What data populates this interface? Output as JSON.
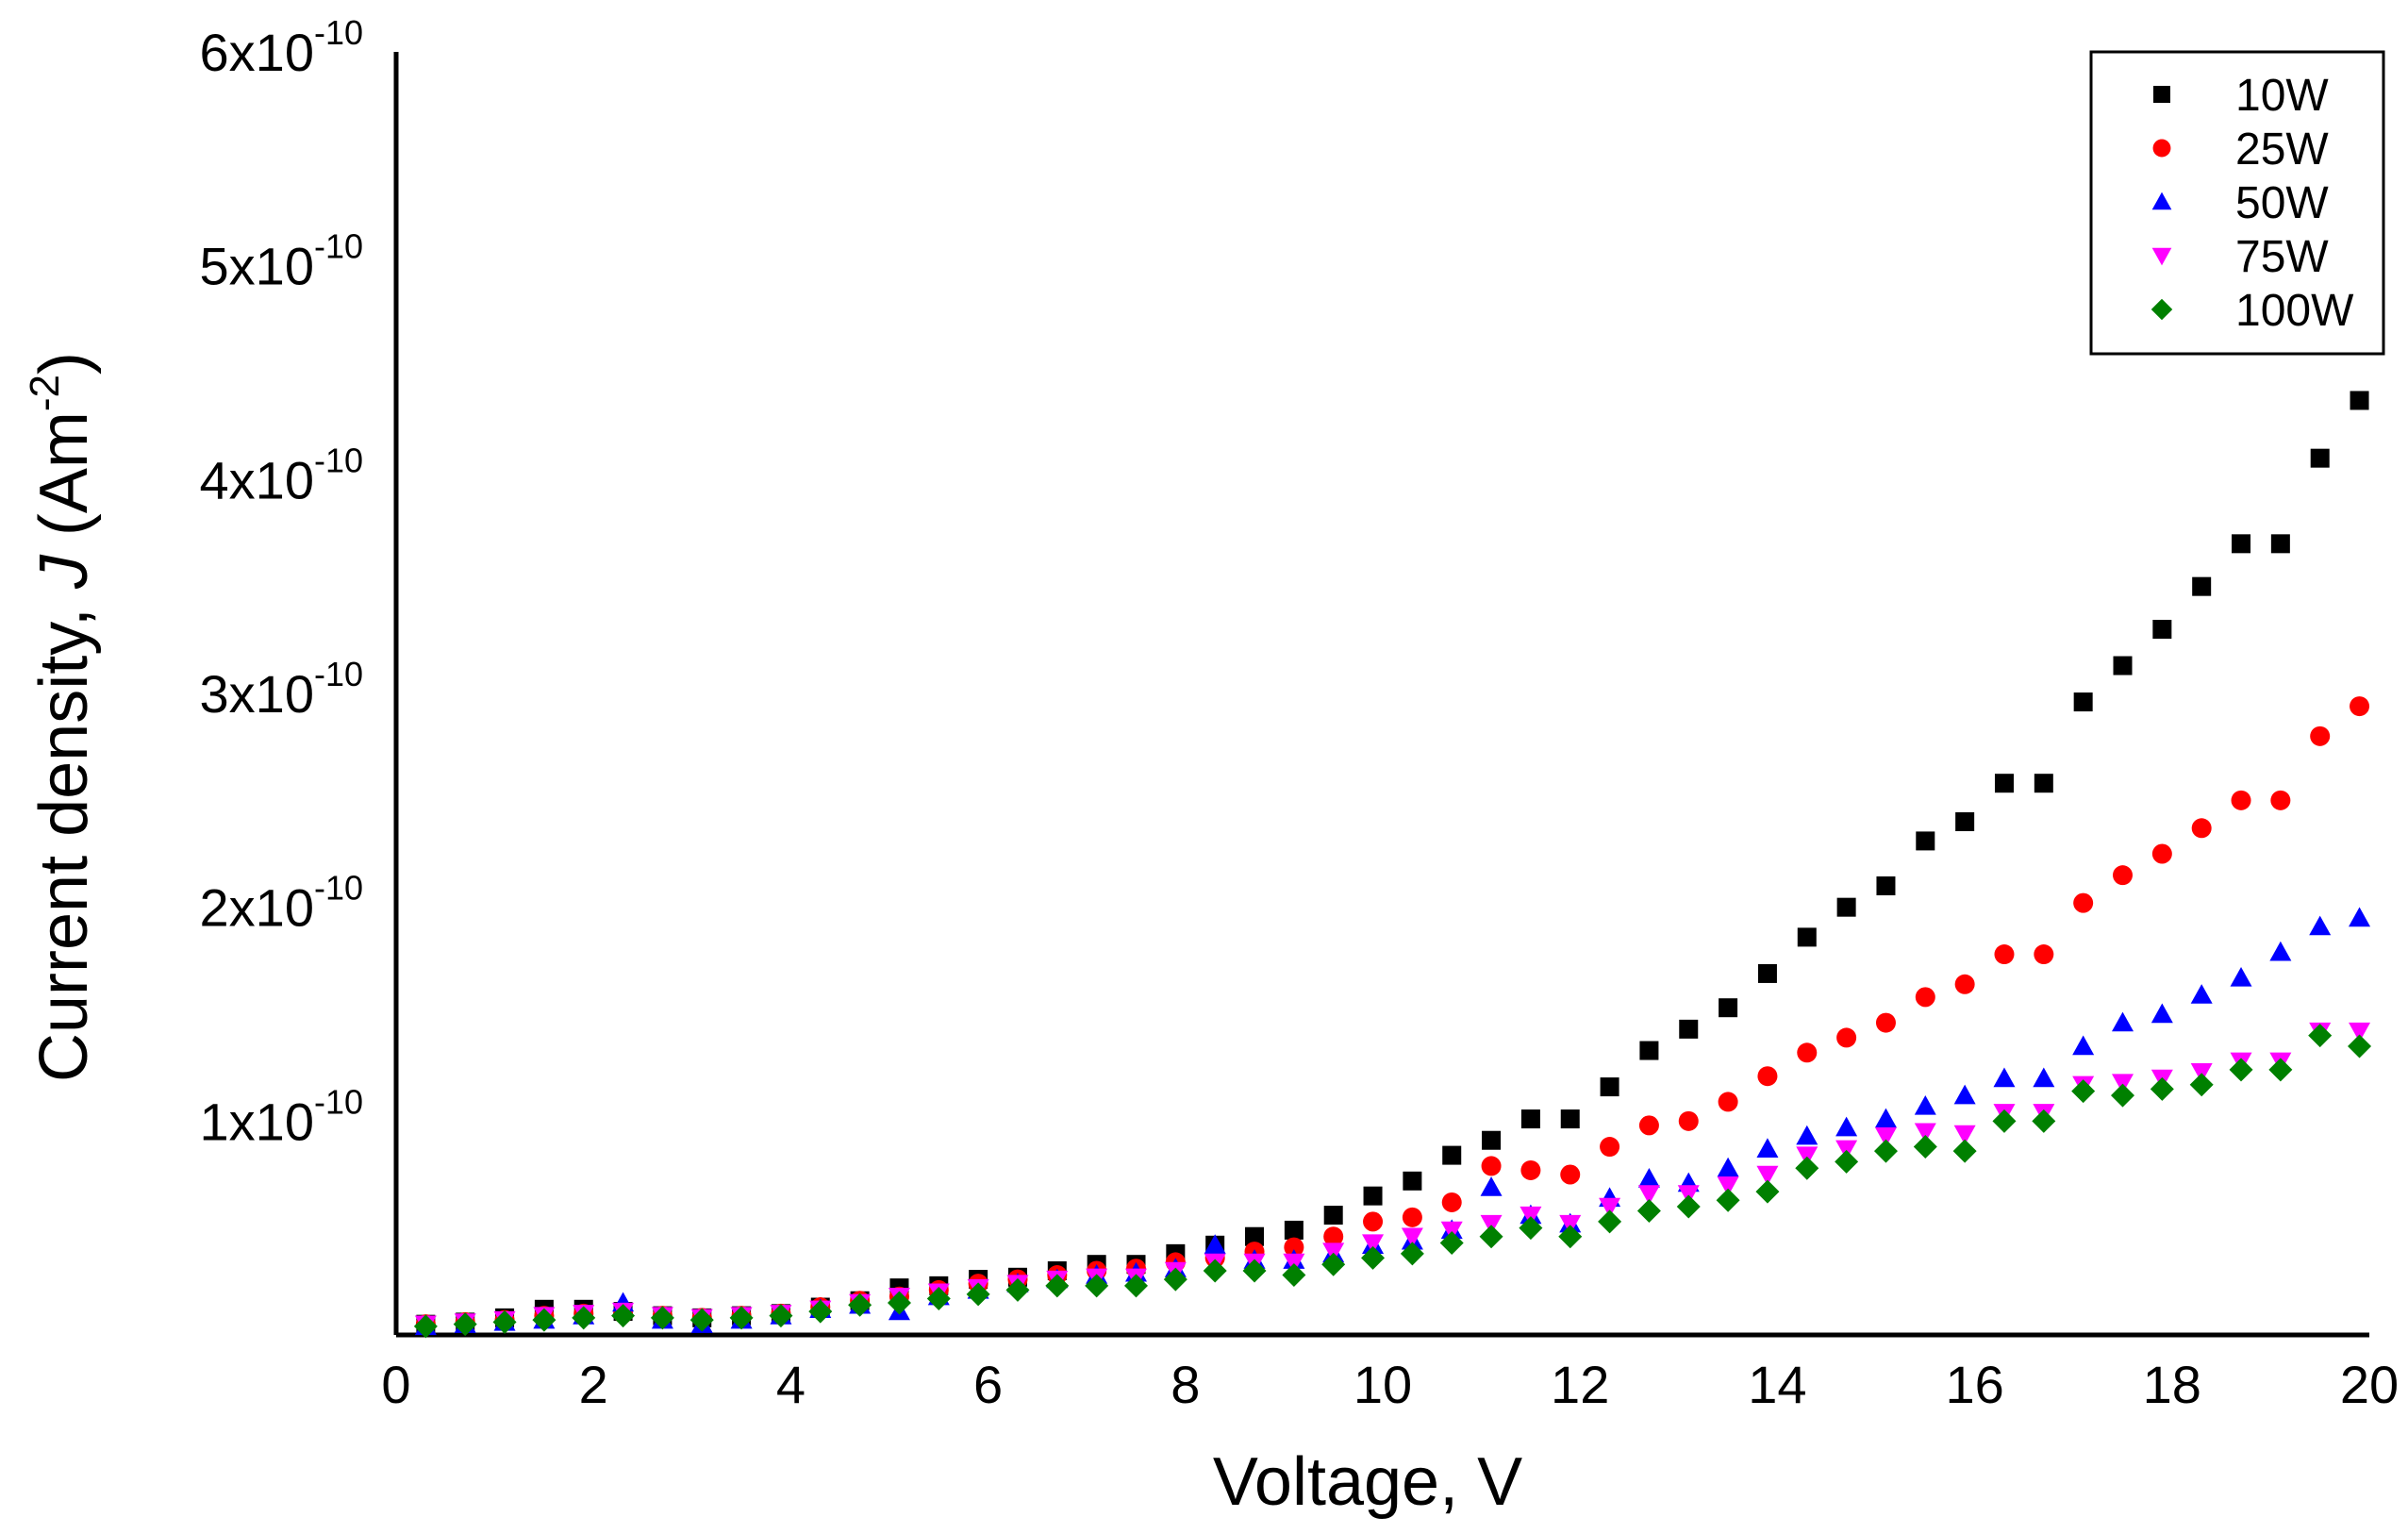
{
  "chart_data": {
    "type": "scatter",
    "title": "",
    "xlabel": "Voltage, V",
    "ylabel_parts": {
      "prefix": "Current density, ",
      "italic": "J",
      "mid": " (Am",
      "sup": "-2",
      "suffix": ")"
    },
    "xlim": [
      0,
      20
    ],
    "ylim": [
      0,
      6e-10
    ],
    "x_ticks": [
      0,
      2,
      4,
      6,
      8,
      10,
      12,
      14,
      16,
      18,
      20
    ],
    "x_tick_labels": [
      "0",
      "2",
      "4",
      "6",
      "8",
      "10",
      "12",
      "14",
      "16",
      "18",
      "20"
    ],
    "y_ticks": [
      1e-10,
      2e-10,
      3e-10,
      4e-10,
      5e-10,
      6e-10
    ],
    "y_tick_labels": [
      {
        "mant": "1x10",
        "exp": "-10"
      },
      {
        "mant": "2x10",
        "exp": "-10"
      },
      {
        "mant": "3x10",
        "exp": "-10"
      },
      {
        "mant": "4x10",
        "exp": "-10"
      },
      {
        "mant": "5x10",
        "exp": "-10"
      },
      {
        "mant": "6x10",
        "exp": "-10"
      }
    ],
    "legend_position": "top-right",
    "x": [
      0.3,
      0.7,
      1.1,
      1.5,
      1.9,
      2.3,
      2.7,
      3.1,
      3.5,
      3.9,
      4.3,
      4.7,
      5.1,
      5.5,
      5.9,
      6.3,
      6.7,
      7.1,
      7.5,
      7.9,
      8.3,
      8.7,
      9.1,
      9.5,
      9.9,
      10.3,
      10.7,
      11.1,
      11.5,
      11.9,
      12.3,
      12.7,
      13.1,
      13.5,
      13.9,
      14.3,
      14.7,
      15.1,
      15.5,
      15.9,
      16.3,
      16.7,
      17.1,
      17.5,
      17.9,
      18.3,
      18.7,
      19.1,
      19.5,
      19.9
    ],
    "series": [
      {
        "name": "10W",
        "marker": "square",
        "color": "#000000",
        "values": [
          5e-12,
          6e-12,
          8e-12,
          1.2e-11,
          1.2e-11,
          1.1e-11,
          9e-12,
          8e-12,
          9e-12,
          1e-11,
          1.3e-11,
          1.6e-11,
          2.2e-11,
          2.3e-11,
          2.6e-11,
          2.7e-11,
          3e-11,
          3.3e-11,
          3.3e-11,
          3.8e-11,
          4.2e-11,
          4.6e-11,
          4.9e-11,
          5.6e-11,
          6.5e-11,
          7.2e-11,
          8.4e-11,
          9.1e-11,
          1.01e-10,
          1.01e-10,
          1.16e-10,
          1.33e-10,
          1.43e-10,
          1.53e-10,
          1.69e-10,
          1.86e-10,
          2e-10,
          2.1e-10,
          2.31e-10,
          2.4e-10,
          2.58e-10,
          2.58e-10,
          2.96e-10,
          3.13e-10,
          3.3e-10,
          3.5e-10,
          3.7e-10,
          3.7e-10,
          4.1e-10,
          4.37e-10
        ]
      },
      {
        "name": "25W",
        "marker": "circle",
        "color": "#ff0000",
        "values": [
          5e-12,
          6e-12,
          7e-12,
          9e-12,
          1e-11,
          1e-11,
          9e-12,
          8e-12,
          9e-12,
          1e-11,
          1.3e-11,
          1.6e-11,
          1.8e-11,
          2.1e-11,
          2.4e-11,
          2.6e-11,
          2.8e-11,
          3e-11,
          3.1e-11,
          3.4e-11,
          3.6e-11,
          3.9e-11,
          4.1e-11,
          4.6e-11,
          5.3e-11,
          5.5e-11,
          6.2e-11,
          7.9e-11,
          7.7e-11,
          7.5e-11,
          8.8e-11,
          9.8e-11,
          1e-10,
          1.09e-10,
          1.21e-10,
          1.32e-10,
          1.39e-10,
          1.46e-10,
          1.58e-10,
          1.64e-10,
          1.78e-10,
          1.78e-10,
          2.02e-10,
          2.15e-10,
          2.25e-10,
          2.37e-10,
          2.5e-10,
          2.5e-10,
          2.8e-10,
          2.94e-10
        ]
      },
      {
        "name": "50W",
        "marker": "triangle-up",
        "color": "#0000ff",
        "values": [
          4e-12,
          5e-12,
          6e-12,
          7e-12,
          9e-12,
          1.5e-11,
          7e-12,
          5e-12,
          7e-12,
          9e-12,
          1.2e-11,
          1.4e-11,
          1.1e-11,
          1.8e-11,
          2.1e-11,
          2.4e-11,
          2.6e-11,
          2.8e-11,
          2.9e-11,
          3.1e-11,
          4.2e-11,
          3.5e-11,
          3.5e-11,
          3.8e-11,
          4.2e-11,
          4.4e-11,
          4.9e-11,
          6.9e-11,
          5.6e-11,
          5.2e-11,
          6.4e-11,
          7.3e-11,
          7.1e-11,
          7.8e-11,
          8.7e-11,
          9.3e-11,
          9.7e-11,
          1.01e-10,
          1.07e-10,
          1.12e-10,
          1.2e-10,
          1.2e-10,
          1.35e-10,
          1.46e-10,
          1.5e-10,
          1.59e-10,
          1.67e-10,
          1.79e-10,
          1.91e-10,
          1.95e-10
        ]
      },
      {
        "name": "75W",
        "marker": "triangle-down",
        "color": "#ff00ff",
        "values": [
          5e-12,
          6e-12,
          7e-12,
          9e-12,
          1e-11,
          1.1e-11,
          9e-12,
          8e-12,
          9e-12,
          1e-11,
          1.2e-11,
          1.5e-11,
          1.8e-11,
          2e-11,
          2.2e-11,
          2.4e-11,
          2.6e-11,
          2.7e-11,
          2.7e-11,
          3e-11,
          3.4e-11,
          3.4e-11,
          3.4e-11,
          3.9e-11,
          4.3e-11,
          4.6e-11,
          4.9e-11,
          5.2e-11,
          5.6e-11,
          5.2e-11,
          6e-11,
          6.6e-11,
          6.6e-11,
          7e-11,
          7.5e-11,
          8.4e-11,
          8.7e-11,
          9.3e-11,
          9.5e-11,
          9.4e-11,
          1.04e-10,
          1.04e-10,
          1.17e-10,
          1.18e-10,
          1.2e-10,
          1.23e-10,
          1.28e-10,
          1.28e-10,
          1.42e-10,
          1.42e-10
        ]
      },
      {
        "name": "100W",
        "marker": "diamond",
        "color": "#008000",
        "values": [
          4e-12,
          5e-12,
          6e-12,
          7e-12,
          8e-12,
          9e-12,
          8e-12,
          7e-12,
          8e-12,
          9e-12,
          1.1e-11,
          1.4e-11,
          1.5e-11,
          1.7e-11,
          1.9e-11,
          2.1e-11,
          2.3e-11,
          2.3e-11,
          2.3e-11,
          2.6e-11,
          3e-11,
          3e-11,
          2.8e-11,
          3.3e-11,
          3.6e-11,
          3.8e-11,
          4.3e-11,
          4.6e-11,
          5e-11,
          4.6e-11,
          5.3e-11,
          5.8e-11,
          6e-11,
          6.3e-11,
          6.7e-11,
          7.8e-11,
          8.1e-11,
          8.6e-11,
          8.8e-11,
          8.6e-11,
          1e-10,
          1e-10,
          1.14e-10,
          1.12e-10,
          1.15e-10,
          1.17e-10,
          1.24e-10,
          1.24e-10,
          1.4e-10,
          1.35e-10
        ]
      }
    ]
  }
}
